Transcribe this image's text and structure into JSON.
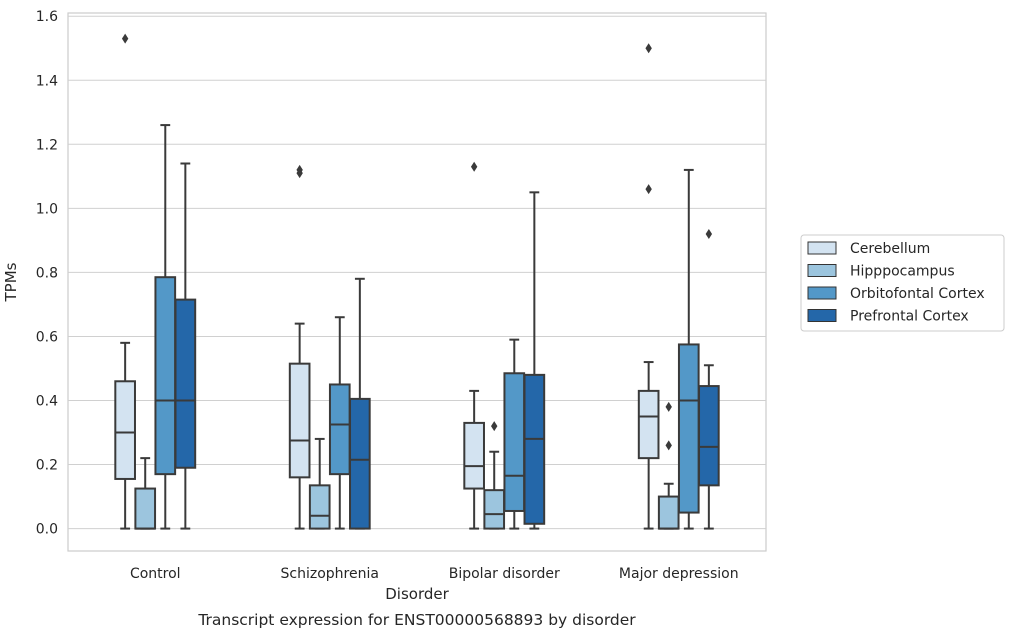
{
  "chart_data": {
    "type": "box",
    "caption": "Transcript expression for ENST00000568893 by disorder",
    "xlabel": "Disorder",
    "ylabel": "TPMs",
    "ylim": [
      -0.07,
      1.61
    ],
    "yticks": [
      0.0,
      0.2,
      0.4,
      0.6,
      0.8,
      1.0,
      1.2,
      1.4,
      1.6
    ],
    "ytick_labels": [
      "0.0",
      "0.2",
      "0.4",
      "0.6",
      "0.8",
      "1.0",
      "1.2",
      "1.4",
      "1.6"
    ],
    "grid": "horizontal",
    "legend_placement": "right",
    "categories": [
      "Control",
      "Schizophrenia",
      "Bipolar disorder",
      "Major depression"
    ],
    "series": [
      {
        "name": "Cerebellum",
        "color": "#d3e3f1",
        "boxes": [
          {
            "whisker_low": 0.0,
            "q1": 0.155,
            "median": 0.3,
            "q3": 0.46,
            "whisker_high": 0.58,
            "outliers": [
              1.53
            ]
          },
          {
            "whisker_low": 0.0,
            "q1": 0.16,
            "median": 0.275,
            "q3": 0.515,
            "whisker_high": 0.64,
            "outliers": [
              1.11,
              1.12
            ]
          },
          {
            "whisker_low": 0.0,
            "q1": 0.125,
            "median": 0.195,
            "q3": 0.33,
            "whisker_high": 0.43,
            "outliers": [
              1.13
            ]
          },
          {
            "whisker_low": 0.0,
            "q1": 0.22,
            "median": 0.35,
            "q3": 0.43,
            "whisker_high": 0.52,
            "outliers": [
              1.06,
              1.5
            ]
          }
        ]
      },
      {
        "name": "Hipppocampus",
        "color": "#9cc5de",
        "boxes": [
          {
            "whisker_low": 0.0,
            "q1": 0.0,
            "median": 0.0,
            "q3": 0.125,
            "whisker_high": 0.22,
            "outliers": []
          },
          {
            "whisker_low": 0.0,
            "q1": 0.0,
            "median": 0.04,
            "q3": 0.135,
            "whisker_high": 0.28,
            "outliers": []
          },
          {
            "whisker_low": 0.0,
            "q1": 0.0,
            "median": 0.045,
            "q3": 0.12,
            "whisker_high": 0.24,
            "outliers": [
              0.32
            ]
          },
          {
            "whisker_low": 0.0,
            "q1": 0.0,
            "median": 0.0,
            "q3": 0.1,
            "whisker_high": 0.14,
            "outliers": [
              0.26,
              0.38
            ]
          }
        ]
      },
      {
        "name": "Orbitofontal Cortex",
        "color": "#5398c8",
        "boxes": [
          {
            "whisker_low": 0.0,
            "q1": 0.17,
            "median": 0.4,
            "q3": 0.785,
            "whisker_high": 1.26,
            "outliers": []
          },
          {
            "whisker_low": 0.0,
            "q1": 0.17,
            "median": 0.325,
            "q3": 0.45,
            "whisker_high": 0.66,
            "outliers": []
          },
          {
            "whisker_low": 0.0,
            "q1": 0.055,
            "median": 0.165,
            "q3": 0.485,
            "whisker_high": 0.59,
            "outliers": []
          },
          {
            "whisker_low": 0.0,
            "q1": 0.05,
            "median": 0.4,
            "q3": 0.575,
            "whisker_high": 1.12,
            "outliers": []
          }
        ]
      },
      {
        "name": "Prefrontal Cortex",
        "color": "#2467a9",
        "boxes": [
          {
            "whisker_low": 0.0,
            "q1": 0.19,
            "median": 0.4,
            "q3": 0.715,
            "whisker_high": 1.14,
            "outliers": []
          },
          {
            "whisker_low": 0.0,
            "q1": 0.0,
            "median": 0.215,
            "q3": 0.405,
            "whisker_high": 0.78,
            "outliers": []
          },
          {
            "whisker_low": 0.0,
            "q1": 0.015,
            "median": 0.28,
            "q3": 0.48,
            "whisker_high": 1.05,
            "outliers": []
          },
          {
            "whisker_low": 0.0,
            "q1": 0.135,
            "median": 0.255,
            "q3": 0.445,
            "whisker_high": 0.51,
            "outliers": [
              0.92
            ]
          }
        ]
      }
    ]
  }
}
